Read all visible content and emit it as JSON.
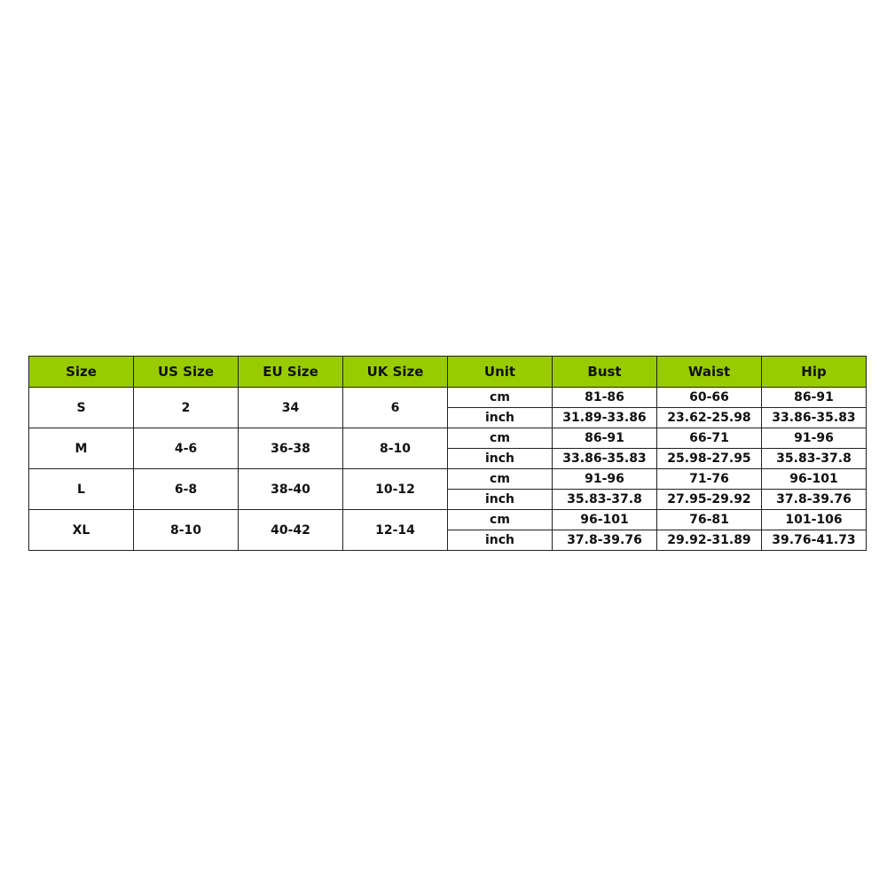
{
  "colors": {
    "header_bg": "#99cc00"
  },
  "headers": [
    "Size",
    "US Size",
    "EU Size",
    "UK Size",
    "Unit",
    "Bust",
    "Waist",
    "Hip"
  ],
  "rows": [
    {
      "size": "S",
      "us": "2",
      "eu": "34",
      "uk": "6",
      "cm": {
        "unit": "cm",
        "bust": "81-86",
        "waist": "60-66",
        "hip": "86-91"
      },
      "inch": {
        "unit": "inch",
        "bust": "31.89-33.86",
        "waist": "23.62-25.98",
        "hip": "33.86-35.83"
      }
    },
    {
      "size": "M",
      "us": "4-6",
      "eu": "36-38",
      "uk": "8-10",
      "cm": {
        "unit": "cm",
        "bust": "86-91",
        "waist": "66-71",
        "hip": "91-96"
      },
      "inch": {
        "unit": "inch",
        "bust": "33.86-35.83",
        "waist": "25.98-27.95",
        "hip": "35.83-37.8"
      }
    },
    {
      "size": "L",
      "us": "6-8",
      "eu": "38-40",
      "uk": "10-12",
      "cm": {
        "unit": "cm",
        "bust": "91-96",
        "waist": "71-76",
        "hip": "96-101"
      },
      "inch": {
        "unit": "inch",
        "bust": "35.83-37.8",
        "waist": "27.95-29.92",
        "hip": "37.8-39.76"
      }
    },
    {
      "size": "XL",
      "us": "8-10",
      "eu": "40-42",
      "uk": "12-14",
      "cm": {
        "unit": "cm",
        "bust": "96-101",
        "waist": "76-81",
        "hip": "101-106"
      },
      "inch": {
        "unit": "inch",
        "bust": "37.8-39.76",
        "waist": "29.92-31.89",
        "hip": "39.76-41.73"
      }
    }
  ]
}
